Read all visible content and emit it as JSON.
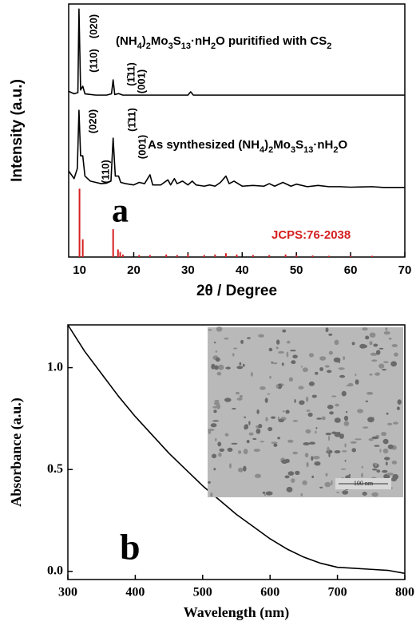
{
  "chart_data": [
    {
      "type": "line",
      "panel_label": "a",
      "xlabel": "2θ / Degree",
      "ylabel": "Intensity (a.u.)",
      "xlim": [
        8,
        70
      ],
      "xticks": [
        10,
        20,
        30,
        40,
        50,
        60,
        70
      ],
      "ylim": [
        0,
        100
      ],
      "series": [
        {
          "color": "#000000",
          "x": [
            8,
            9,
            9.7,
            9.9,
            10.2,
            10.6,
            11,
            13,
            15,
            15.9,
            16.2,
            16.5,
            17.2,
            18,
            20,
            25,
            30,
            30.5,
            31,
            35,
            40,
            45,
            50,
            55,
            60,
            65,
            70
          ],
          "values": [
            65.5,
            64.5,
            65,
            98,
            66,
            67.5,
            64.5,
            64,
            64,
            64.5,
            70,
            64.2,
            64.6,
            64,
            64,
            64,
            64,
            65.3,
            64,
            64,
            64,
            64,
            64,
            64,
            64,
            64,
            64
          ]
        },
        {
          "color": "#000000",
          "x": [
            8,
            9,
            9.6,
            9.9,
            10.2,
            10.6,
            11,
            12,
            13,
            14,
            15,
            15.8,
            16.2,
            16.6,
            17.2,
            17.6,
            18.5,
            20,
            21,
            22,
            23,
            23.5,
            25,
            26.3,
            26.8,
            27.5,
            28,
            29,
            30,
            30.8,
            31.5,
            33,
            34,
            35,
            36,
            37,
            37.6,
            38.5,
            40,
            42,
            44,
            45,
            46,
            47.5,
            49,
            50,
            52,
            54,
            56,
            58,
            60,
            62,
            64,
            66,
            68,
            70
          ],
          "values": [
            34,
            31,
            35,
            58,
            40,
            40,
            32,
            30,
            29.5,
            29,
            29.2,
            30,
            47,
            32,
            32,
            29.5,
            29,
            28.5,
            29.5,
            29,
            32.5,
            28.5,
            28.5,
            30.5,
            28.5,
            31,
            29,
            30,
            28.5,
            30,
            28.5,
            28,
            28.5,
            28,
            29.5,
            32,
            29,
            30,
            28,
            28.3,
            28,
            29,
            28,
            29.5,
            28,
            28.8,
            27.8,
            28.3,
            27.8,
            27.8,
            27.6,
            27.7,
            27.8,
            27.5,
            27.5,
            27.5
          ]
        },
        {
          "color": "#d62020",
          "style": "stem",
          "x": [
            10,
            10.6,
            16.2,
            17.1,
            17.5,
            18,
            21,
            23,
            26,
            28,
            30,
            33,
            35,
            37,
            39,
            42,
            45,
            48,
            50,
            53,
            56,
            60,
            64
          ],
          "values": [
            27,
            7,
            11,
            3,
            2,
            1,
            0.8,
            0.8,
            1,
            0.8,
            1,
            0.8,
            1,
            1.5,
            1,
            0.8,
            0.8,
            1,
            0.8,
            0.6,
            0.5,
            0.5,
            0.5
          ]
        }
      ],
      "annotations": [
        {
          "parts": [
            {
              "text": "(NH"
            },
            {
              "text": "4",
              "sub": true
            },
            {
              "text": ")"
            },
            {
              "text": "2",
              "sub": true
            },
            {
              "text": "Mo"
            },
            {
              "text": "3",
              "sub": true
            },
            {
              "text": "S"
            },
            {
              "text": "13",
              "sub": true
            },
            {
              "text": "·nH"
            },
            {
              "text": "2",
              "sub": true
            },
            {
              "text": "O puritified with CS"
            },
            {
              "text": "2",
              "sub": true
            }
          ]
        },
        {
          "parts": [
            {
              "text": "As synthesized (NH"
            },
            {
              "text": "4",
              "sub": true
            },
            {
              "text": ")"
            },
            {
              "text": "2",
              "sub": true
            },
            {
              "text": "Mo"
            },
            {
              "text": "3",
              "sub": true
            },
            {
              "text": "S"
            },
            {
              "text": "13",
              "sub": true
            },
            {
              "text": "·nH"
            },
            {
              "text": "2",
              "sub": true
            },
            {
              "text": "O"
            }
          ]
        },
        {
          "parts": [
            {
              "text": "JCPS:76-2038"
            }
          ],
          "color": "#d62020"
        }
      ],
      "peak_labels": [
        "(110)",
        "(020)",
        "(1̄11)",
        "(001)",
        "(020)",
        "(110)",
        "(1̄11)",
        "(001)"
      ]
    },
    {
      "type": "line",
      "panel_label": "b",
      "xlabel": "Wavelength (nm)",
      "ylabel": "Absorbance (a.u.)",
      "xlim": [
        300,
        800
      ],
      "xticks": [
        300,
        400,
        500,
        600,
        700,
        800
      ],
      "ylim": [
        -0.04,
        1.21
      ],
      "yticks": [
        {
          "value": 0,
          "label": "0.0"
        },
        0.5,
        {
          "value": 1,
          "label": "1.0"
        }
      ],
      "series": [
        {
          "color": "#000000",
          "x": [
            300,
            325,
            350,
            375,
            400,
            425,
            450,
            475,
            500,
            525,
            550,
            575,
            600,
            625,
            650,
            675,
            700,
            725,
            750,
            775,
            800
          ],
          "values": [
            1.21,
            1.08,
            0.97,
            0.86,
            0.76,
            0.67,
            0.58,
            0.5,
            0.42,
            0.35,
            0.28,
            0.22,
            0.16,
            0.11,
            0.07,
            0.04,
            0.02,
            0.015,
            0.01,
            0.005,
            -0.01
          ]
        }
      ],
      "inset_scale_label": "100 nm"
    }
  ]
}
